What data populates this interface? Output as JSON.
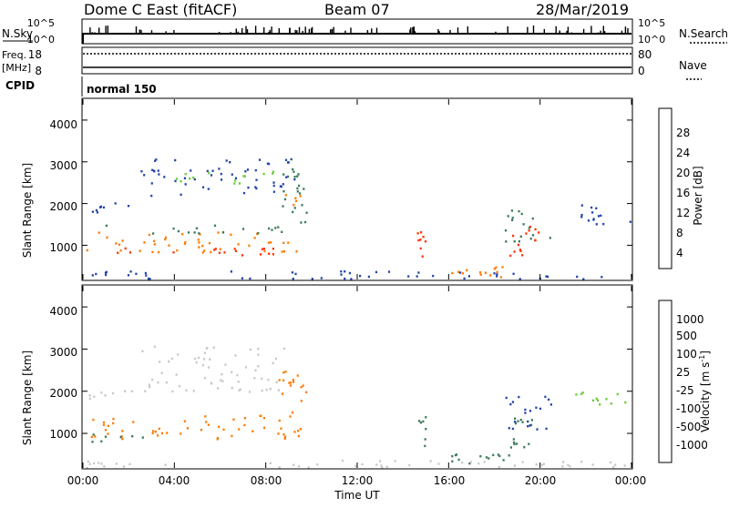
{
  "header": {
    "station": "Dome C East (fitACF)",
    "beam": "Beam 07",
    "date": "28/Mar/2019"
  },
  "top_panels": {
    "nsky_label": "N.Sky",
    "nsky_ticks": [
      "10^5",
      "10^0"
    ],
    "nsearch_label": "N.Search",
    "nsearch_ticks": [
      "10^5",
      "10^0"
    ],
    "freq_label": "Freq.",
    "freq_unit": "[MHz]",
    "freq_ticks": [
      "18",
      "8"
    ],
    "nave_label": "Nave",
    "nave_ticks": [
      "80",
      "0"
    ],
    "cpid_label": "CPID",
    "cpid_text": "normal 150"
  },
  "chart_data": [
    {
      "type": "heatmap",
      "name": "power",
      "ylabel": "Slant Range [km]",
      "xlabel": "",
      "ylim": [
        180,
        4500
      ],
      "yticks": [
        "4000",
        "3000",
        "2000",
        "1000"
      ],
      "colorbar": {
        "label": "Power [dB]",
        "ticks": [
          "28",
          "24",
          "20",
          "16",
          "12",
          "8",
          "4"
        ],
        "colors": [
          "#0000ff",
          "#2244aa",
          "#3a7a5a",
          "#66cc33",
          "#ffd000",
          "#ff8a00",
          "#ff3300",
          "#ff0000"
        ]
      },
      "regions": [
        {
          "t0": 0.1,
          "t1": 9.6,
          "r0": 850,
          "r1": 1350,
          "color": "#ff7a00"
        },
        {
          "t0": 0.2,
          "t1": 9.4,
          "r0": 780,
          "r1": 950,
          "color": "#ff3300"
        },
        {
          "t0": 0.1,
          "t1": 9.3,
          "r0": 1300,
          "r1": 1500,
          "color": "#3a7a5a"
        },
        {
          "t0": 0.2,
          "t1": 2.0,
          "r0": 1800,
          "r1": 2050,
          "color": "#2244aa"
        },
        {
          "t0": 2.5,
          "t1": 9.3,
          "r0": 2200,
          "r1": 3100,
          "color": "#2244aa"
        },
        {
          "t0": 4.0,
          "t1": 8.5,
          "r0": 2500,
          "r1": 2800,
          "color": "#66cc33"
        },
        {
          "t0": 8.5,
          "t1": 9.8,
          "r0": 1500,
          "r1": 2900,
          "color": "#3a7a5a"
        },
        {
          "t0": 8.7,
          "t1": 9.6,
          "r0": 1900,
          "r1": 2300,
          "color": "#ff7a00"
        },
        {
          "t0": 14.6,
          "t1": 15.0,
          "r0": 750,
          "r1": 1500,
          "color": "#ff3300"
        },
        {
          "t0": 16.1,
          "t1": 18.8,
          "r0": 250,
          "r1": 550,
          "color": "#ff7a00"
        },
        {
          "t0": 18.6,
          "t1": 19.9,
          "r0": 700,
          "r1": 1500,
          "color": "#ff3300"
        },
        {
          "t0": 18.4,
          "t1": 20.6,
          "r0": 1100,
          "r1": 1900,
          "color": "#3a7a5a"
        },
        {
          "t0": 0.1,
          "t1": 24.0,
          "r0": 200,
          "r1": 400,
          "color": "#2244aa"
        },
        {
          "t0": 21.5,
          "t1": 24.0,
          "r0": 1500,
          "r1": 2000,
          "color": "#2244aa"
        }
      ]
    },
    {
      "type": "heatmap",
      "name": "velocity",
      "ylabel": "Slant Range [km]",
      "xlabel": "Time UT",
      "ylim": [
        180,
        4500
      ],
      "yticks": [
        "4000",
        "3000",
        "2000",
        "1000"
      ],
      "xticks": [
        "00:00",
        "04:00",
        "08:00",
        "12:00",
        "16:00",
        "20:00",
        "00:00"
      ],
      "colorbar": {
        "label": "Velocity [m s",
        "label_sup": "-1",
        "label_end": "]",
        "ticks": [
          "1000",
          "500",
          "100",
          "25",
          "-25",
          "-100",
          "-500",
          "-1000"
        ],
        "colors": [
          "#ff0000",
          "#ff5500",
          "#ff9900",
          "#ffcc00",
          "#c8c8c8",
          "#66cc33",
          "#3a7a5a",
          "#2244aa",
          "#1e3ab0"
        ]
      },
      "regions": [
        {
          "t0": 0.1,
          "t1": 9.6,
          "r0": 850,
          "r1": 1450,
          "color": "#ff7a00"
        },
        {
          "t0": 0.2,
          "t1": 3.0,
          "r0": 800,
          "r1": 1000,
          "color": "#3a7a5a"
        },
        {
          "t0": 0.2,
          "t1": 2.2,
          "r0": 1800,
          "r1": 2050,
          "color": "#c8c8c8"
        },
        {
          "t0": 2.5,
          "t1": 8.8,
          "r0": 2000,
          "r1": 3100,
          "color": "#c8c8c8"
        },
        {
          "t0": 8.5,
          "t1": 9.8,
          "r0": 1300,
          "r1": 2500,
          "color": "#ff7a00"
        },
        {
          "t0": 14.6,
          "t1": 15.0,
          "r0": 700,
          "r1": 1500,
          "color": "#3a7a5a"
        },
        {
          "t0": 16.1,
          "t1": 18.8,
          "r0": 250,
          "r1": 550,
          "color": "#3a7a5a"
        },
        {
          "t0": 18.6,
          "t1": 19.9,
          "r0": 650,
          "r1": 1500,
          "color": "#3a7a5a"
        },
        {
          "t0": 18.4,
          "t1": 20.6,
          "r0": 1100,
          "r1": 1900,
          "color": "#2244aa"
        },
        {
          "t0": 0.1,
          "t1": 24.0,
          "r0": 200,
          "r1": 400,
          "color": "#c8c8c8"
        },
        {
          "t0": 21.5,
          "t1": 24.0,
          "r0": 1700,
          "r1": 2000,
          "color": "#66cc33"
        }
      ]
    }
  ]
}
